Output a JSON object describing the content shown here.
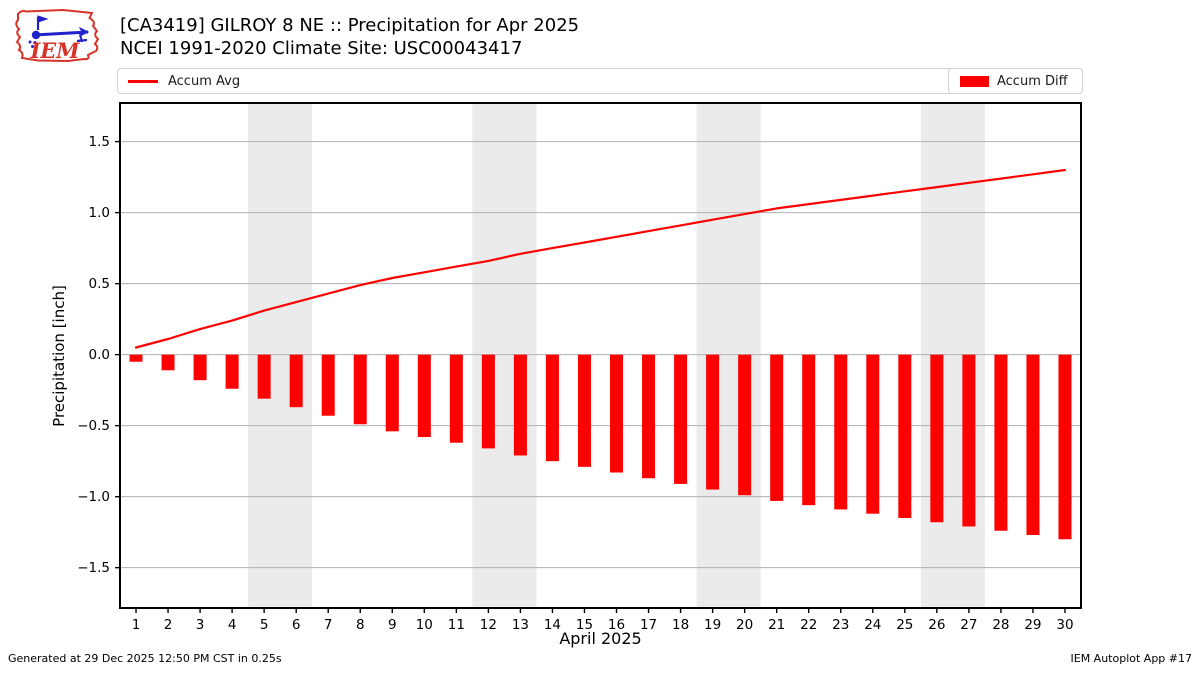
{
  "header": {
    "title": "[CA3419] GILROY 8 NE :: Precipitation for Apr 2025",
    "subtitle": "NCEI 1991-2020 Climate Site: USC00043417",
    "logo_text": "IEM"
  },
  "legend": {
    "avg_label": "Accum Avg",
    "diff_label": "Accum Diff"
  },
  "footer": {
    "left": "Generated at 29 Dec 2025 12:50 PM CST in 0.25s",
    "right": "IEM Autoplot App #17"
  },
  "chart_data": {
    "type": "mixed",
    "title": "[CA3419] GILROY 8 NE :: Precipitation for Apr 2025",
    "subtitle": "NCEI 1991-2020 Climate Site: USC00043417",
    "xlabel": "April 2025",
    "ylabel": "Precipitation [inch]",
    "x": [
      1,
      2,
      3,
      4,
      5,
      6,
      7,
      8,
      9,
      10,
      11,
      12,
      13,
      14,
      15,
      16,
      17,
      18,
      19,
      20,
      21,
      22,
      23,
      24,
      25,
      26,
      27,
      28,
      29,
      30
    ],
    "xtick_labels": [
      "1",
      "2",
      "3",
      "4",
      "5",
      "6",
      "7",
      "8",
      "9",
      "10",
      "11",
      "12",
      "13",
      "14",
      "15",
      "16",
      "17",
      "18",
      "19",
      "20",
      "21",
      "22",
      "23",
      "24",
      "25",
      "26",
      "27",
      "28",
      "29",
      "30"
    ],
    "ylim": [
      -1.784,
      1.772
    ],
    "yticks": [
      {
        "value": 1.5,
        "label": "1.5"
      },
      {
        "value": 1.0,
        "label": "1.0"
      },
      {
        "value": 0.5,
        "label": "0.5"
      },
      {
        "value": 0.0,
        "label": "0.0"
      },
      {
        "value": -0.5,
        "label": "−0.5"
      },
      {
        "value": -1.0,
        "label": "−1.0"
      },
      {
        "value": -1.5,
        "label": "−1.5"
      }
    ],
    "series": [
      {
        "name": "Accum Avg",
        "type": "line",
        "color": "#ff0000",
        "values": [
          0.05,
          0.11,
          0.18,
          0.24,
          0.31,
          0.37,
          0.43,
          0.49,
          0.54,
          0.58,
          0.62,
          0.66,
          0.71,
          0.75,
          0.79,
          0.83,
          0.87,
          0.91,
          0.95,
          0.99,
          1.03,
          1.06,
          1.09,
          1.12,
          1.15,
          1.18,
          1.21,
          1.24,
          1.27,
          1.3
        ]
      },
      {
        "name": "Accum Diff",
        "type": "bar",
        "color": "#ff0000",
        "values": [
          -0.05,
          -0.11,
          -0.18,
          -0.24,
          -0.31,
          -0.37,
          -0.43,
          -0.49,
          -0.54,
          -0.58,
          -0.62,
          -0.66,
          -0.71,
          -0.75,
          -0.79,
          -0.83,
          -0.87,
          -0.91,
          -0.95,
          -0.99,
          -1.03,
          -1.06,
          -1.09,
          -1.12,
          -1.15,
          -1.18,
          -1.21,
          -1.24,
          -1.27,
          -1.3
        ]
      }
    ],
    "weekend_day_bands": [
      [
        5,
        6
      ],
      [
        12,
        13
      ],
      [
        19,
        20
      ],
      [
        26,
        27
      ]
    ],
    "grid": true,
    "legend_position": "top",
    "colors": {
      "series_red": "#ff0000",
      "weekend_band": "#ebebeb",
      "gridline": "#b0b0b0",
      "axis_border": "#000000",
      "legend_border": "#d2d2d2",
      "logo_red": "#d63429",
      "logo_blue": "#2222cc"
    }
  }
}
